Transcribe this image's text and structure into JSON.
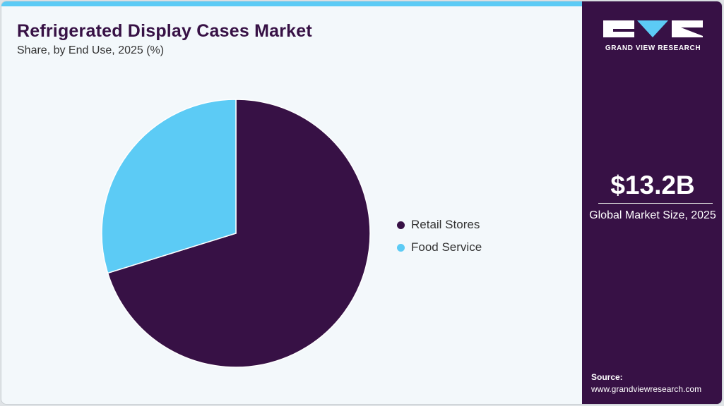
{
  "title": "Refrigerated Display Cases Market",
  "subtitle": "Share, by End Use, 2025 (%)",
  "chart_data": {
    "type": "pie",
    "title": "Refrigerated Display Cases Market",
    "subtitle": "Share, by End Use, 2025 (%)",
    "categories": [
      "Retail Stores",
      "Food Service"
    ],
    "values": [
      70.2,
      29.8
    ],
    "colors": [
      "#371145",
      "#5ccbf5"
    ],
    "legend": "right"
  },
  "sidebar": {
    "logo_text": "GRAND VIEW RESEARCH",
    "market_value": "$13.2B",
    "market_label": "Global Market Size, 2025",
    "source_label": "Source:",
    "source_url": "www.grandviewresearch.com"
  },
  "colors": {
    "accent": "#5ccbf5",
    "brand": "#371145",
    "background": "#f3f8fb"
  }
}
